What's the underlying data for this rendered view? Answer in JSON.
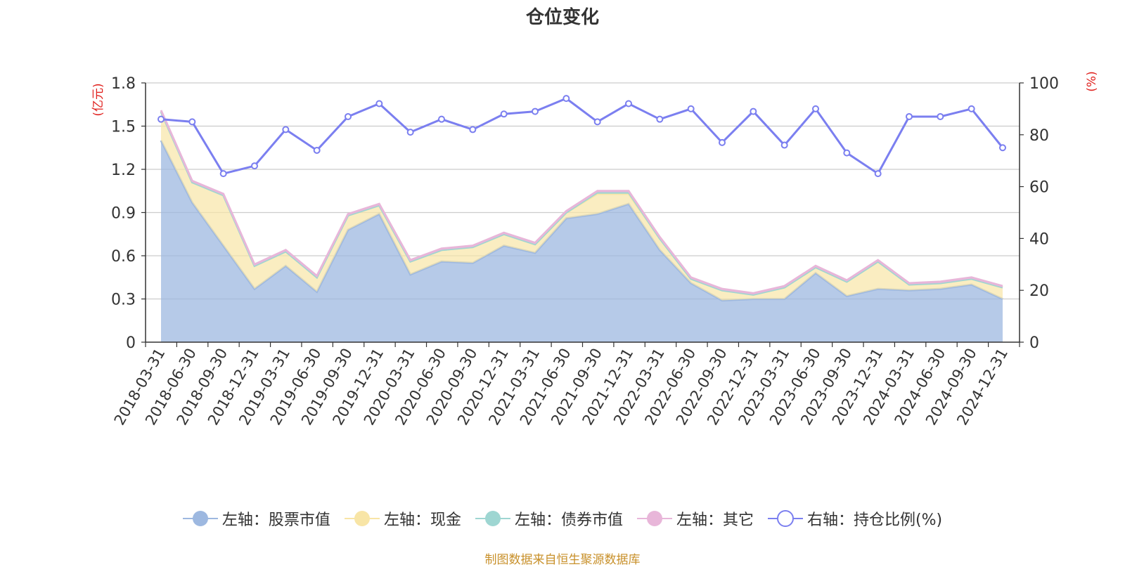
{
  "chart_data": {
    "type": "area",
    "title": "仓位变化",
    "categories": [
      "2018-03-31",
      "2018-06-30",
      "2018-09-30",
      "2018-12-31",
      "2019-03-31",
      "2019-06-30",
      "2019-09-30",
      "2019-12-31",
      "2020-03-31",
      "2020-06-30",
      "2020-09-30",
      "2020-12-31",
      "2021-03-31",
      "2021-06-30",
      "2021-09-30",
      "2021-12-31",
      "2022-03-31",
      "2022-06-30",
      "2022-09-30",
      "2022-12-31",
      "2023-03-31",
      "2023-06-30",
      "2023-09-30",
      "2023-12-31",
      "2024-03-31",
      "2024-06-30",
      "2024-09-30",
      "2024-12-31"
    ],
    "left_axis": {
      "label": "(亿元)",
      "ylim": [
        0,
        1.8
      ],
      "ticks": [
        "0",
        "0.3",
        "0.6",
        "0.9",
        "1.2",
        "1.5",
        "1.8"
      ]
    },
    "right_axis": {
      "label": "(%)",
      "ylim": [
        0,
        100
      ],
      "ticks": [
        "0",
        "20",
        "40",
        "60",
        "80",
        "100"
      ]
    },
    "series": [
      {
        "name": "左轴：股票市值",
        "axis": "left",
        "stack": true,
        "color": "#9db8e0",
        "values": [
          1.4,
          0.97,
          0.67,
          0.37,
          0.53,
          0.35,
          0.78,
          0.89,
          0.47,
          0.56,
          0.55,
          0.67,
          0.62,
          0.86,
          0.89,
          0.96,
          0.64,
          0.41,
          0.29,
          0.3,
          0.3,
          0.48,
          0.32,
          0.37,
          0.36,
          0.37,
          0.4,
          0.3
        ]
      },
      {
        "name": "左轴：现金",
        "axis": "left",
        "stack": true,
        "color": "#f8e5a6",
        "values": [
          0.2,
          0.14,
          0.35,
          0.16,
          0.1,
          0.1,
          0.1,
          0.06,
          0.09,
          0.08,
          0.11,
          0.08,
          0.06,
          0.04,
          0.14,
          0.07,
          0.08,
          0.03,
          0.07,
          0.03,
          0.08,
          0.04,
          0.1,
          0.19,
          0.04,
          0.04,
          0.04,
          0.08
        ]
      },
      {
        "name": "左轴：债券市值",
        "axis": "left",
        "stack": true,
        "color": "#9ed6d2",
        "values": [
          0,
          0,
          0,
          0,
          0,
          0,
          0,
          0,
          0,
          0,
          0,
          0,
          0,
          0,
          0.01,
          0.01,
          0,
          0,
          0,
          0,
          0,
          0,
          0,
          0,
          0,
          0,
          0,
          0
        ]
      },
      {
        "name": "左轴：其它",
        "axis": "left",
        "stack": true,
        "color": "#e8b6d9",
        "values": [
          0.01,
          0.01,
          0.01,
          0.01,
          0.01,
          0.01,
          0.01,
          0.01,
          0.01,
          0.01,
          0.01,
          0.01,
          0.01,
          0.01,
          0.01,
          0.01,
          0.01,
          0.01,
          0.01,
          0.01,
          0.01,
          0.01,
          0.01,
          0.01,
          0.01,
          0.01,
          0.01,
          0.01
        ]
      },
      {
        "name": "右轴：持仓比例(%)",
        "axis": "right",
        "type": "line",
        "color": "#7b7ff0",
        "values": [
          86,
          85,
          65,
          68,
          82,
          74,
          87,
          92,
          81,
          86,
          82,
          88,
          89,
          94,
          85,
          92,
          86,
          90,
          77,
          89,
          76,
          90,
          73,
          65,
          87,
          87,
          90,
          75
        ]
      }
    ],
    "legend_position": "bottom",
    "grid": true
  },
  "source_text": "制图数据来自恒生聚源数据库"
}
